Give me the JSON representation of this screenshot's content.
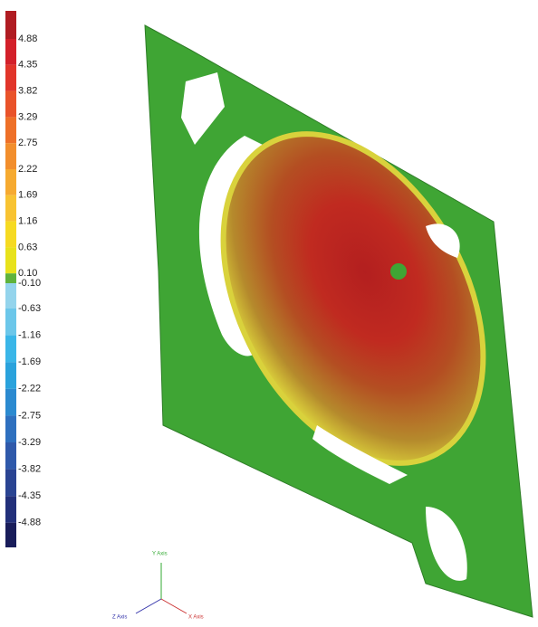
{
  "legend": {
    "labels": [
      "4.88",
      "4.35",
      "3.82",
      "3.29",
      "2.75",
      "2.22",
      "1.69",
      "1.16",
      "0.63",
      "0.10",
      "-0.10",
      "-0.63",
      "-1.16",
      "-1.69",
      "-2.22",
      "-2.75",
      "-3.29",
      "-3.82",
      "-4.35",
      "-4.88"
    ],
    "colors": [
      "#b01c22",
      "#d3202a",
      "#e1352a",
      "#e9532a",
      "#ee7028",
      "#f28e2c",
      "#f6aa30",
      "#f8c332",
      "#f6da22",
      "#e8e21c",
      "#5fb33c",
      "#94d4ec",
      "#6cc7ea",
      "#3ab6e8",
      "#2aa2dc",
      "#2b8ad0",
      "#2e70bf",
      "#2f59aa",
      "#2a4492",
      "#22307a",
      "#191d5a"
    ]
  },
  "axes": {
    "y": "Y Axis",
    "z": "Z Axis",
    "x": "X Axis"
  }
}
